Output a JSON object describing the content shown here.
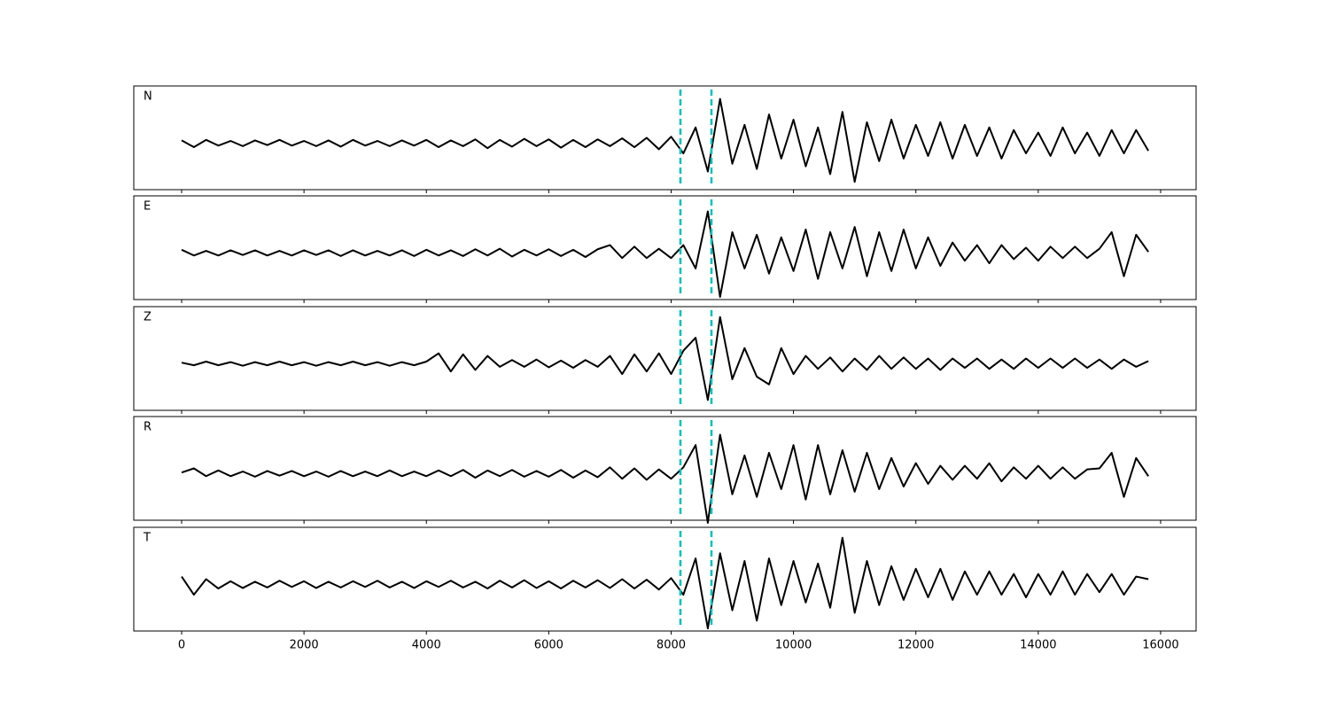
{
  "chart_data": [
    {
      "type": "line",
      "label": "N",
      "color": "#000000",
      "vline_color": "#00bfbf",
      "vlines": [
        8152,
        8659
      ],
      "xlim": [
        -782,
        16580
      ],
      "ylim": [
        -0.9,
        1.1
      ],
      "xticks": [
        0,
        2000,
        4000,
        6000,
        8000,
        10000,
        12000,
        14000,
        16000
      ],
      "x": [
        0,
        200,
        400,
        600,
        800,
        1000,
        1200,
        1400,
        1600,
        1800,
        2000,
        2200,
        2400,
        2600,
        2800,
        3000,
        3200,
        3400,
        3600,
        3800,
        4000,
        4200,
        4400,
        4600,
        4800,
        5000,
        5200,
        5400,
        5600,
        5800,
        6000,
        6200,
        6400,
        6600,
        6800,
        7000,
        7200,
        7400,
        7600,
        7800,
        8000,
        8200,
        8400,
        8600,
        8800,
        9000,
        9200,
        9400,
        9600,
        9800,
        10000,
        10200,
        10400,
        10600,
        10800,
        11000,
        11200,
        11400,
        11600,
        11800,
        12000,
        12200,
        12400,
        12600,
        12800,
        13000,
        13200,
        13400,
        13600,
        13800,
        14000,
        14200,
        14400,
        14600,
        14800,
        15000,
        15200,
        15400,
        15600,
        15800
      ],
      "values": [
        0.05,
        -0.08,
        0.06,
        -0.05,
        0.04,
        -0.06,
        0.05,
        -0.04,
        0.06,
        -0.05,
        0.04,
        -0.06,
        0.05,
        -0.07,
        0.06,
        -0.05,
        0.04,
        -0.06,
        0.05,
        -0.05,
        0.06,
        -0.08,
        0.05,
        -0.06,
        0.07,
        -0.1,
        0.06,
        -0.07,
        0.08,
        -0.06,
        0.07,
        -0.09,
        0.06,
        -0.08,
        0.07,
        -0.06,
        0.09,
        -0.08,
        0.1,
        -0.12,
        0.12,
        -0.2,
        0.3,
        -0.55,
        0.85,
        -0.4,
        0.35,
        -0.5,
        0.55,
        -0.3,
        0.45,
        -0.45,
        0.3,
        -0.6,
        0.6,
        -0.75,
        0.4,
        -0.35,
        0.45,
        -0.3,
        0.35,
        -0.25,
        0.4,
        -0.3,
        0.35,
        -0.25,
        0.3,
        -0.3,
        0.25,
        -0.2,
        0.2,
        -0.25,
        0.3,
        -0.2,
        0.2,
        -0.25,
        0.25,
        -0.2,
        0.25,
        -0.15
      ]
    },
    {
      "type": "line",
      "label": "E",
      "color": "#000000",
      "vline_color": "#00bfbf",
      "vlines": [
        8152,
        8659
      ],
      "xlim": [
        -782,
        16580
      ],
      "ylim": [
        -0.9,
        1.1
      ],
      "xticks": [
        0,
        2000,
        4000,
        6000,
        8000,
        10000,
        12000,
        14000,
        16000
      ],
      "x": [
        0,
        200,
        400,
        600,
        800,
        1000,
        1200,
        1400,
        1600,
        1800,
        2000,
        2200,
        2400,
        2600,
        2800,
        3000,
        3200,
        3400,
        3600,
        3800,
        4000,
        4200,
        4400,
        4600,
        4800,
        5000,
        5200,
        5400,
        5600,
        5800,
        6000,
        6200,
        6400,
        6600,
        6800,
        7000,
        7200,
        7400,
        7600,
        7800,
        8000,
        8200,
        8400,
        8600,
        8800,
        9000,
        9200,
        9400,
        9600,
        9800,
        10000,
        10200,
        10400,
        10600,
        10800,
        11000,
        11200,
        11400,
        11600,
        11800,
        12000,
        12200,
        12400,
        12600,
        12800,
        13000,
        13200,
        13400,
        13600,
        13800,
        14000,
        14200,
        14400,
        14600,
        14800,
        15000,
        15200,
        15400,
        15600,
        15800
      ],
      "values": [
        0.06,
        -0.05,
        0.04,
        -0.05,
        0.05,
        -0.04,
        0.05,
        -0.05,
        0.04,
        -0.05,
        0.05,
        -0.04,
        0.05,
        -0.06,
        0.05,
        -0.05,
        0.04,
        -0.05,
        0.05,
        -0.06,
        0.06,
        -0.05,
        0.05,
        -0.06,
        0.07,
        -0.05,
        0.08,
        -0.07,
        0.06,
        -0.05,
        0.07,
        -0.06,
        0.06,
        -0.08,
        0.07,
        0.15,
        -0.1,
        0.12,
        -0.1,
        0.08,
        -0.1,
        0.15,
        -0.3,
        0.8,
        -0.85,
        0.4,
        -0.3,
        0.35,
        -0.4,
        0.3,
        -0.35,
        0.45,
        -0.5,
        0.4,
        -0.3,
        0.5,
        -0.45,
        0.4,
        -0.35,
        0.45,
        -0.3,
        0.3,
        -0.25,
        0.2,
        -0.15,
        0.15,
        -0.2,
        0.15,
        -0.12,
        0.1,
        -0.15,
        0.12,
        -0.1,
        0.12,
        -0.1,
        0.08,
        0.4,
        -0.45,
        0.35,
        0.02
      ]
    },
    {
      "type": "line",
      "label": "Z",
      "color": "#000000",
      "vline_color": "#00bfbf",
      "vlines": [
        8152,
        8659
      ],
      "xlim": [
        -782,
        16580
      ],
      "ylim": [
        -0.9,
        1.1
      ],
      "xticks": [
        0,
        2000,
        4000,
        6000,
        8000,
        10000,
        12000,
        14000,
        16000
      ],
      "x": [
        0,
        200,
        400,
        600,
        800,
        1000,
        1200,
        1400,
        1600,
        1800,
        2000,
        2200,
        2400,
        2600,
        2800,
        3000,
        3200,
        3400,
        3600,
        3800,
        4000,
        4200,
        4400,
        4600,
        4800,
        5000,
        5200,
        5400,
        5600,
        5800,
        6000,
        6200,
        6400,
        6600,
        6800,
        7000,
        7200,
        7400,
        7600,
        7800,
        8000,
        8200,
        8400,
        8600,
        8800,
        9000,
        9200,
        9400,
        9600,
        9800,
        10000,
        10200,
        10400,
        10600,
        10800,
        11000,
        11200,
        11400,
        11600,
        11800,
        12000,
        12200,
        12400,
        12600,
        12800,
        13000,
        13200,
        13400,
        13600,
        13800,
        14000,
        14200,
        14400,
        14600,
        14800,
        15000,
        15200,
        15400,
        15600,
        15800
      ],
      "values": [
        0.02,
        -0.03,
        0.04,
        -0.03,
        0.03,
        -0.04,
        0.03,
        -0.03,
        0.04,
        -0.03,
        0.03,
        -0.04,
        0.03,
        -0.03,
        0.04,
        -0.03,
        0.03,
        -0.04,
        0.03,
        -0.03,
        0.04,
        0.2,
        -0.15,
        0.18,
        -0.12,
        0.15,
        -0.06,
        0.07,
        -0.06,
        0.08,
        -0.07,
        0.06,
        -0.08,
        0.07,
        -0.06,
        0.15,
        -0.2,
        0.18,
        -0.15,
        0.2,
        -0.2,
        0.25,
        0.5,
        -0.7,
        0.9,
        -0.3,
        0.3,
        -0.25,
        -0.4,
        0.3,
        -0.2,
        0.15,
        -0.1,
        0.12,
        -0.15,
        0.1,
        -0.12,
        0.15,
        -0.1,
        0.12,
        -0.1,
        0.1,
        -0.12,
        0.1,
        -0.08,
        0.1,
        -0.1,
        0.08,
        -0.1,
        0.1,
        -0.08,
        0.1,
        -0.08,
        0.1,
        -0.08,
        0.08,
        -0.1,
        0.08,
        -0.06,
        0.05
      ]
    },
    {
      "type": "line",
      "label": "R",
      "color": "#000000",
      "vline_color": "#00bfbf",
      "vlines": [
        8152,
        8659
      ],
      "xlim": [
        -782,
        16580
      ],
      "ylim": [
        -0.9,
        1.1
      ],
      "xticks": [
        0,
        2000,
        4000,
        6000,
        8000,
        10000,
        12000,
        14000,
        16000
      ],
      "x": [
        0,
        200,
        400,
        600,
        800,
        1000,
        1200,
        1400,
        1600,
        1800,
        2000,
        2200,
        2400,
        2600,
        2800,
        3000,
        3200,
        3400,
        3600,
        3800,
        4000,
        4200,
        4400,
        4600,
        4800,
        5000,
        5200,
        5400,
        5600,
        5800,
        6000,
        6200,
        6400,
        6600,
        6800,
        7000,
        7200,
        7400,
        7600,
        7800,
        8000,
        8200,
        8400,
        8600,
        8800,
        9000,
        9200,
        9400,
        9600,
        9800,
        10000,
        10200,
        10400,
        10600,
        10800,
        11000,
        11200,
        11400,
        11600,
        11800,
        12000,
        12200,
        12400,
        12600,
        12800,
        13000,
        13200,
        13400,
        13600,
        13800,
        14000,
        14200,
        14400,
        14600,
        14800,
        15000,
        15200,
        15400,
        15600,
        15800
      ],
      "values": [
        0.02,
        0.1,
        -0.05,
        0.06,
        -0.05,
        0.04,
        -0.06,
        0.05,
        -0.04,
        0.05,
        -0.05,
        0.04,
        -0.06,
        0.05,
        -0.05,
        0.04,
        -0.05,
        0.06,
        -0.05,
        0.04,
        -0.05,
        0.06,
        -0.05,
        0.07,
        -0.08,
        0.06,
        -0.05,
        0.07,
        -0.06,
        0.05,
        -0.06,
        0.07,
        -0.08,
        0.06,
        -0.07,
        0.12,
        -0.1,
        0.1,
        -0.12,
        0.08,
        -0.1,
        0.12,
        0.55,
        -0.95,
        0.75,
        -0.4,
        0.35,
        -0.45,
        0.4,
        -0.3,
        0.55,
        -0.5,
        0.55,
        -0.4,
        0.45,
        -0.35,
        0.4,
        -0.3,
        0.3,
        -0.25,
        0.2,
        -0.2,
        0.15,
        -0.12,
        0.15,
        -0.1,
        0.2,
        -0.15,
        0.12,
        -0.1,
        0.15,
        -0.1,
        0.12,
        -0.1,
        0.08,
        0.1,
        0.4,
        -0.45,
        0.3,
        -0.05
      ]
    },
    {
      "type": "line",
      "label": "T",
      "color": "#000000",
      "vline_color": "#00bfbf",
      "vlines": [
        8152,
        8659
      ],
      "xlim": [
        -782,
        16580
      ],
      "ylim": [
        -0.9,
        1.1
      ],
      "xticks": [
        0,
        2000,
        4000,
        6000,
        8000,
        10000,
        12000,
        14000,
        16000
      ],
      "x": [
        0,
        200,
        400,
        600,
        800,
        1000,
        1200,
        1400,
        1600,
        1800,
        2000,
        2200,
        2400,
        2600,
        2800,
        3000,
        3200,
        3400,
        3600,
        3800,
        4000,
        4200,
        4400,
        4600,
        4800,
        5000,
        5200,
        5400,
        5600,
        5800,
        6000,
        6200,
        6400,
        6600,
        6800,
        7000,
        7200,
        7400,
        7600,
        7800,
        8000,
        8200,
        8400,
        8600,
        8800,
        9000,
        9200,
        9400,
        9600,
        9800,
        10000,
        10200,
        10400,
        10600,
        10800,
        11000,
        11200,
        11400,
        11600,
        11800,
        12000,
        12200,
        12400,
        12600,
        12800,
        13000,
        13200,
        13400,
        13600,
        13800,
        14000,
        14200,
        14400,
        14600,
        14800,
        15000,
        15200,
        15400,
        15600,
        15800
      ],
      "values": [
        0.15,
        -0.2,
        0.1,
        -0.08,
        0.06,
        -0.07,
        0.05,
        -0.06,
        0.07,
        -0.05,
        0.06,
        -0.07,
        0.05,
        -0.06,
        0.06,
        -0.05,
        0.07,
        -0.06,
        0.05,
        -0.07,
        0.06,
        -0.05,
        0.07,
        -0.06,
        0.05,
        -0.08,
        0.07,
        -0.06,
        0.08,
        -0.07,
        0.06,
        -0.08,
        0.07,
        -0.06,
        0.08,
        -0.07,
        0.1,
        -0.08,
        0.09,
        -0.1,
        0.12,
        -0.2,
        0.5,
        -0.85,
        0.6,
        -0.5,
        0.45,
        -0.7,
        0.5,
        -0.4,
        0.45,
        -0.35,
        0.4,
        -0.45,
        0.9,
        -0.55,
        0.45,
        -0.4,
        0.35,
        -0.3,
        0.3,
        -0.25,
        0.3,
        -0.3,
        0.25,
        -0.2,
        0.25,
        -0.2,
        0.2,
        -0.25,
        0.2,
        -0.2,
        0.25,
        -0.2,
        0.2,
        -0.15,
        0.2,
        -0.2,
        0.15,
        0.1
      ]
    }
  ]
}
